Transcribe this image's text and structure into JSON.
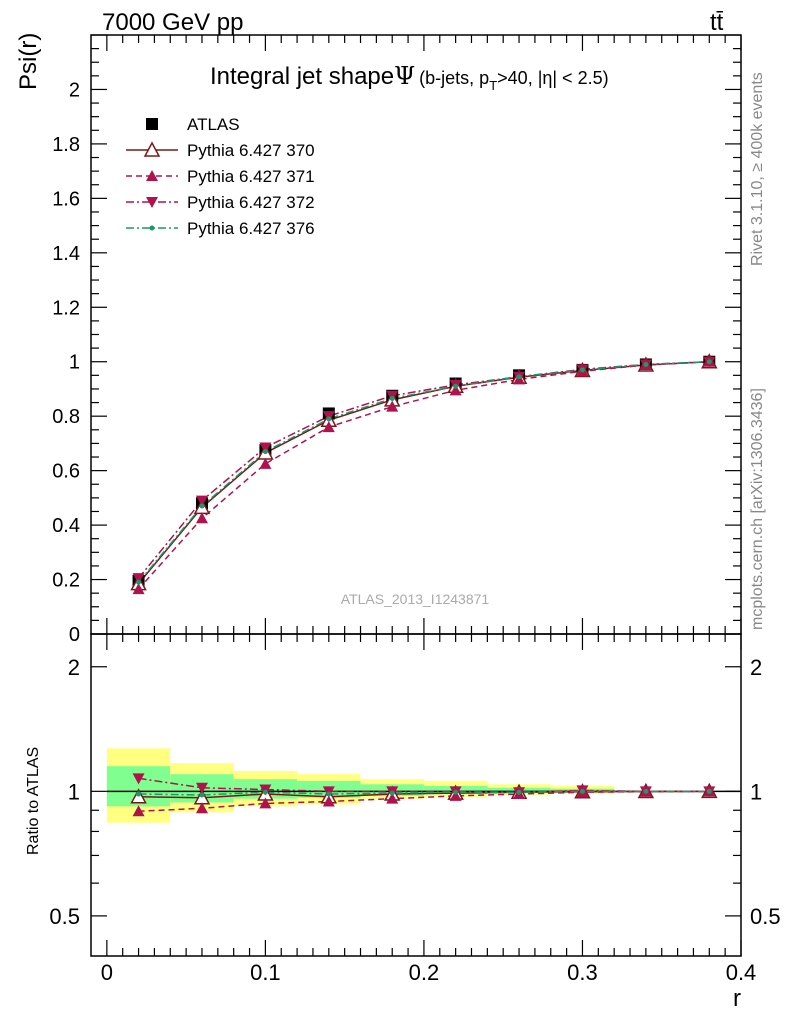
{
  "header": {
    "energy_label": "7000 GeV pp",
    "process_label": "tt̄",
    "title_main": "Integral jet shape",
    "title_symbol": "Ψ",
    "title_sub": "(b-jets, p",
    "title_sub_T": "T",
    "title_sub_rest": ">40, |η| < 2.5)"
  },
  "side_labels": {
    "rivet": "Rivet 3.1.10, ≥ 400k events",
    "mcplots": "mcplots.cern.ch [arXiv:1306.3436]"
  },
  "watermark": "ATLAS_2013_I1243871",
  "axes": {
    "top_ylabel": "Psi(r)",
    "bottom_ylabel": "Ratio to ATLAS",
    "xlabel": "r",
    "top_yticks": [
      "0.2",
      "0.4",
      "0.6",
      "0.8",
      "1",
      "1.2",
      "1.4",
      "1.6",
      "1.8",
      "2"
    ],
    "top_ytick_values": [
      0.2,
      0.4,
      0.6,
      0.8,
      1.0,
      1.2,
      1.4,
      1.6,
      1.8,
      2.0
    ],
    "top_ytick_zero": "0",
    "bottom_yticks": [
      "0.5",
      "1",
      "2"
    ],
    "bottom_ytick_values": [
      0.5,
      1.0,
      2.0
    ],
    "xticks": [
      "0",
      "0.1",
      "0.2",
      "0.3",
      "0.4"
    ],
    "xtick_values": [
      0,
      0.1,
      0.2,
      0.3,
      0.4
    ]
  },
  "legend": [
    {
      "label": "ATLAS",
      "color": "#000000",
      "marker": "square",
      "dash": "none"
    },
    {
      "label": "Pythia 6.427 370",
      "color": "#7a1818",
      "marker": "triangle-open",
      "dash": "solid"
    },
    {
      "label": "Pythia 6.427 371",
      "color": "#b0124e",
      "marker": "triangle-up",
      "dash": "dashed"
    },
    {
      "label": "Pythia 6.427 372",
      "color": "#b0124e",
      "marker": "triangle-down",
      "dash": "dashdot"
    },
    {
      "label": "Pythia 6.427 376",
      "color": "#1a9a6a",
      "marker": "dot",
      "dash": "dashdot"
    }
  ],
  "chart_data": {
    "type": "line",
    "xlim": [
      -0.01,
      0.4
    ],
    "ylim": [
      0,
      2.2
    ],
    "ratio_ylim_log": [
      0.4,
      2.4
    ],
    "x": [
      0.02,
      0.06,
      0.1,
      0.14,
      0.18,
      0.22,
      0.26,
      0.3,
      0.34,
      0.38
    ],
    "series": [
      {
        "name": "ATLAS",
        "values": [
          0.195,
          0.48,
          0.675,
          0.81,
          0.875,
          0.92,
          0.95,
          0.97,
          0.99,
          1.0
        ]
      },
      {
        "name": "Pythia 6.427 370",
        "values": [
          0.185,
          0.465,
          0.665,
          0.785,
          0.86,
          0.91,
          0.943,
          0.968,
          0.988,
          1.0
        ]
      },
      {
        "name": "Pythia 6.427 371",
        "values": [
          0.165,
          0.425,
          0.625,
          0.76,
          0.835,
          0.895,
          0.935,
          0.965,
          0.988,
          1.0
        ]
      },
      {
        "name": "Pythia 6.427 372",
        "values": [
          0.205,
          0.49,
          0.685,
          0.8,
          0.875,
          0.915,
          0.945,
          0.972,
          0.99,
          1.0
        ]
      },
      {
        "name": "Pythia 6.427 376",
        "values": [
          0.19,
          0.47,
          0.67,
          0.79,
          0.865,
          0.91,
          0.945,
          0.97,
          0.99,
          1.0
        ]
      }
    ],
    "ratio_series": [
      {
        "name": "Pythia 6.427 370",
        "values": [
          0.97,
          0.965,
          0.985,
          0.97,
          0.985,
          0.99,
          0.995,
          0.998,
          0.999,
          1.0
        ]
      },
      {
        "name": "Pythia 6.427 371",
        "values": [
          0.895,
          0.91,
          0.935,
          0.945,
          0.96,
          0.975,
          0.985,
          0.995,
          0.998,
          1.0
        ]
      },
      {
        "name": "Pythia 6.427 372",
        "values": [
          1.075,
          1.02,
          1.01,
          1.0,
          1.0,
          1.0,
          0.995,
          1.005,
          1.0,
          1.0
        ]
      },
      {
        "name": "Pythia 6.427 376",
        "values": [
          0.985,
          0.98,
          0.995,
          0.985,
          0.99,
          0.995,
          0.995,
          1.0,
          1.0,
          1.0
        ]
      }
    ],
    "uncertainty_bands": {
      "bins": [
        [
          0.0,
          0.04
        ],
        [
          0.04,
          0.08
        ],
        [
          0.08,
          0.12
        ],
        [
          0.12,
          0.16
        ],
        [
          0.16,
          0.2
        ],
        [
          0.2,
          0.24
        ],
        [
          0.24,
          0.28
        ],
        [
          0.28,
          0.32
        ],
        [
          0.32,
          0.36
        ],
        [
          0.36,
          0.4
        ]
      ],
      "yellow": [
        [
          0.84,
          1.27
        ],
        [
          0.89,
          1.17
        ],
        [
          0.92,
          1.12
        ],
        [
          0.93,
          1.1
        ],
        [
          0.96,
          1.07
        ],
        [
          0.97,
          1.06
        ],
        [
          0.98,
          1.04
        ],
        [
          0.985,
          1.03
        ],
        [
          0.995,
          1.005
        ],
        [
          0.998,
          1.002
        ]
      ],
      "green": [
        [
          0.92,
          1.15
        ],
        [
          0.94,
          1.1
        ],
        [
          0.96,
          1.07
        ],
        [
          0.965,
          1.06
        ],
        [
          0.975,
          1.04
        ],
        [
          0.985,
          1.03
        ],
        [
          0.99,
          1.02
        ],
        [
          0.993,
          1.015
        ],
        [
          0.998,
          1.002
        ],
        [
          0.999,
          1.001
        ]
      ],
      "yellow_color": "#ffff80",
      "green_color": "#80ff90"
    }
  }
}
